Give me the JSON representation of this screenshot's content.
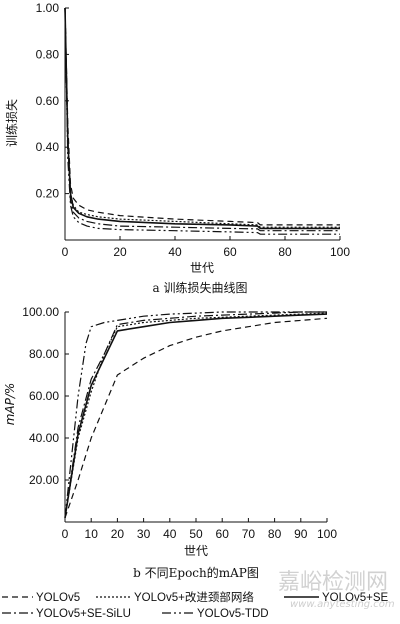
{
  "chart_data": [
    {
      "type": "line",
      "caption": "a  训练损失曲线图",
      "xlabel": "世代",
      "ylabel": "训练损失",
      "xlim": [
        0,
        100
      ],
      "ylim": [
        0,
        1.0
      ],
      "xticks": [
        0,
        20,
        40,
        60,
        80,
        100
      ],
      "yticks": [
        0.2,
        0.4,
        0.6,
        0.8,
        1.0
      ],
      "ytick_labels": [
        "0.20",
        "0.40",
        "0.60",
        "0.80",
        "1.00"
      ],
      "grid": false,
      "series": [
        {
          "name": "YOLOv5",
          "x": [
            0,
            1,
            2,
            3,
            5,
            8,
            12,
            20,
            40,
            60,
            70,
            71,
            80,
            100
          ],
          "y": [
            1.0,
            0.5,
            0.24,
            0.18,
            0.15,
            0.13,
            0.12,
            0.105,
            0.09,
            0.08,
            0.075,
            0.065,
            0.065,
            0.065
          ]
        },
        {
          "name": "YOLOv5+改进颈部网络",
          "x": [
            0,
            1,
            2,
            3,
            5,
            8,
            12,
            20,
            40,
            60,
            70,
            71,
            80,
            100
          ],
          "y": [
            1.0,
            0.45,
            0.2,
            0.15,
            0.12,
            0.11,
            0.1,
            0.09,
            0.08,
            0.07,
            0.065,
            0.055,
            0.055,
            0.055
          ]
        },
        {
          "name": "YOLOv5+SE",
          "x": [
            0,
            1,
            2,
            3,
            5,
            8,
            12,
            20,
            40,
            60,
            70,
            71,
            80,
            100
          ],
          "y": [
            1.0,
            0.43,
            0.2,
            0.14,
            0.115,
            0.1,
            0.09,
            0.08,
            0.07,
            0.065,
            0.06,
            0.05,
            0.05,
            0.05
          ]
        },
        {
          "name": "YOLOv5+SE-SiLU",
          "x": [
            0,
            1,
            2,
            3,
            5,
            8,
            12,
            20,
            40,
            60,
            70,
            71,
            80,
            100
          ],
          "y": [
            1.0,
            0.4,
            0.17,
            0.12,
            0.095,
            0.08,
            0.07,
            0.06,
            0.055,
            0.05,
            0.048,
            0.04,
            0.04,
            0.04
          ]
        },
        {
          "name": "YOLOv5-TDD",
          "x": [
            0,
            1,
            2,
            3,
            5,
            8,
            12,
            20,
            40,
            60,
            70,
            71,
            80,
            100
          ],
          "y": [
            1.0,
            0.35,
            0.15,
            0.1,
            0.075,
            0.06,
            0.05,
            0.045,
            0.04,
            0.035,
            0.032,
            0.025,
            0.025,
            0.025
          ]
        }
      ]
    },
    {
      "type": "line",
      "caption": "b  不同Epoch的mAP图",
      "xlabel": "世代",
      "ylabel": "mAP/%",
      "xlim": [
        0,
        100
      ],
      "ylim": [
        0,
        100
      ],
      "xticks": [
        0,
        10,
        20,
        30,
        40,
        50,
        60,
        70,
        80,
        90,
        100
      ],
      "yticks": [
        20,
        40,
        60,
        80,
        100
      ],
      "ytick_labels": [
        "20.00",
        "40.00",
        "60.00",
        "80.00",
        "100.00"
      ],
      "grid": false,
      "series": [
        {
          "name": "YOLOv5",
          "x": [
            0,
            5,
            10,
            15,
            20,
            30,
            40,
            50,
            60,
            70,
            80,
            90,
            100
          ],
          "y": [
            2,
            20,
            40,
            55,
            70,
            78,
            84,
            88,
            91,
            93,
            95,
            96,
            97
          ]
        },
        {
          "name": "YOLOv5+改进颈部网络",
          "x": [
            0,
            5,
            10,
            15,
            20,
            30,
            40,
            50,
            60,
            70,
            80,
            90,
            100
          ],
          "y": [
            2,
            40,
            62,
            80,
            93,
            95,
            96,
            97,
            97.5,
            98,
            98.5,
            99,
            99.5
          ]
        },
        {
          "name": "YOLOv5+SE",
          "x": [
            0,
            5,
            10,
            15,
            20,
            30,
            40,
            50,
            60,
            70,
            80,
            90,
            100
          ],
          "y": [
            2,
            42,
            65,
            78,
            91,
            93,
            95,
            96,
            97,
            97.5,
            98,
            98.5,
            99
          ]
        },
        {
          "name": "YOLOv5+SE-SiLU",
          "x": [
            0,
            5,
            10,
            15,
            20,
            30,
            40,
            50,
            60,
            70,
            80,
            90,
            100
          ],
          "y": [
            2,
            45,
            68,
            80,
            94,
            96,
            97,
            98,
            98.5,
            99,
            99.5,
            100,
            100
          ]
        },
        {
          "name": "YOLOv5-TDD",
          "x": [
            0,
            5,
            8,
            10,
            15,
            20,
            30,
            40,
            50,
            60,
            70,
            80,
            90,
            100
          ],
          "y": [
            2,
            60,
            85,
            93,
            95,
            96,
            98,
            99,
            99.5,
            100,
            100,
            100,
            100,
            100
          ]
        }
      ]
    }
  ],
  "legend": {
    "items": [
      "YOLOv5",
      "YOLOv5+改进颈部网络",
      "YOLOv5+SE",
      "YOLOv5+SE-SiLU",
      "YOLOv5-TDD"
    ],
    "styles": [
      "dashed",
      "dotted",
      "solid",
      "dash-dot",
      "dash-dot"
    ]
  },
  "watermark": {
    "text": "嘉峪检测网",
    "url": "www.anytesting.com"
  },
  "colors": {
    "line": "#111111",
    "watermark": "#c9c9c9"
  }
}
